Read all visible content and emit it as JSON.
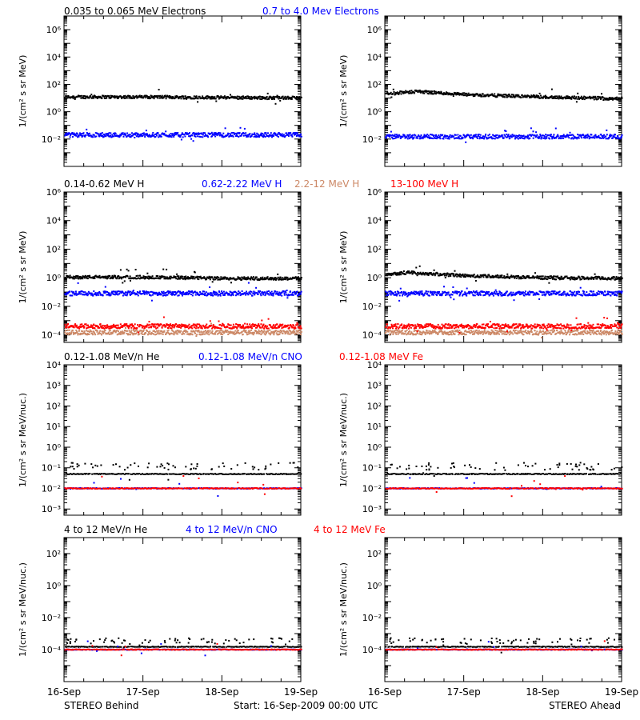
{
  "footer": {
    "left": "STEREO Behind",
    "center": "Start: 16-Sep-2009 00:00 UTC",
    "right": "STEREO Ahead"
  },
  "x_ticks": [
    "16-Sep",
    "17-Sep",
    "18-Sep",
    "19-Sep"
  ],
  "colors": {
    "black": "#000000",
    "blue": "#0000ff",
    "tan": "#cc8866",
    "red": "#ff0000"
  },
  "rows": [
    {
      "labels": [
        {
          "text": "0.035 to 0.065 MeV Electrons",
          "color": "#000000"
        },
        {
          "text": "0.7 to 4.0 Mev Electrons",
          "color": "#0000ff"
        }
      ],
      "ylabel": "1/(cm² s sr MeV)",
      "yticks": [
        {
          "exp": -2,
          "text": "10⁻²"
        },
        {
          "exp": 0,
          "text": "10⁰"
        },
        {
          "exp": 2,
          "text": "10²"
        },
        {
          "exp": 4,
          "text": "10⁴"
        },
        {
          "exp": 6,
          "text": "10⁶"
        }
      ]
    },
    {
      "labels": [
        {
          "text": "0.14-0.62 MeV H",
          "color": "#000000"
        },
        {
          "text": "0.62-2.22 MeV H",
          "color": "#0000ff"
        },
        {
          "text": "2.2-12 MeV H",
          "color": "#cc8866"
        },
        {
          "text": "13-100 MeV H",
          "color": "#ff0000"
        }
      ],
      "ylabel": "1/(cm² s sr MeV)",
      "yticks": [
        {
          "exp": -4,
          "text": "10⁻⁴"
        },
        {
          "exp": -2,
          "text": "10⁻²"
        },
        {
          "exp": 0,
          "text": "10⁰"
        },
        {
          "exp": 2,
          "text": "10²"
        },
        {
          "exp": 4,
          "text": "10⁴"
        },
        {
          "exp": 6,
          "text": "10⁶"
        }
      ]
    },
    {
      "labels": [
        {
          "text": "0.12-1.08 MeV/n He",
          "color": "#000000"
        },
        {
          "text": "0.12-1.08 MeV/n CNO",
          "color": "#0000ff"
        },
        {
          "text": "0.12-1.08 MeV Fe",
          "color": "#ff0000"
        }
      ],
      "ylabel": "1/(cm² s sr MeV/nuc.)",
      "yticks": [
        {
          "exp": -3,
          "text": "10⁻³"
        },
        {
          "exp": -2,
          "text": "10⁻²"
        },
        {
          "exp": -1,
          "text": "10⁻¹"
        },
        {
          "exp": 0,
          "text": "10⁰"
        },
        {
          "exp": 1,
          "text": "10¹"
        },
        {
          "exp": 2,
          "text": "10²"
        },
        {
          "exp": 3,
          "text": "10³"
        },
        {
          "exp": 4,
          "text": "10⁴"
        }
      ]
    },
    {
      "labels": [
        {
          "text": "4 to 12 MeV/n He",
          "color": "#000000"
        },
        {
          "text": "4 to 12 MeV/n CNO",
          "color": "#0000ff"
        },
        {
          "text": "4 to 12 MeV Fe",
          "color": "#ff0000"
        }
      ],
      "ylabel": "1/(cm² s sr MeV/nuc.)",
      "yticks": [
        {
          "exp": -4,
          "text": "10⁻⁴"
        },
        {
          "exp": -2,
          "text": "10⁻²"
        },
        {
          "exp": 0,
          "text": "10⁰"
        },
        {
          "exp": 2,
          "text": "10²"
        }
      ]
    }
  ],
  "chart_data": [
    {
      "type": "scatter",
      "spacecraft": "STEREO Behind",
      "row": 0,
      "xlim": [
        "2009-09-16",
        "2009-09-19"
      ],
      "ylim": [
        0.0001,
        10000000
      ],
      "yscale": "log",
      "ylabel": "1/(cm² s sr MeV)",
      "series": [
        {
          "name": "0.035 to 0.065 MeV Electrons",
          "color": "#000000",
          "level": [
            [
              0,
              12
            ],
            [
              1,
              12
            ],
            [
              2,
              11
            ],
            [
              3,
              10
            ]
          ]
        },
        {
          "name": "0.7 to 4.0 Mev Electrons",
          "color": "#0000ff",
          "level": [
            [
              0,
              0.02
            ],
            [
              3,
              0.02
            ]
          ]
        }
      ]
    },
    {
      "type": "scatter",
      "spacecraft": "STEREO Ahead",
      "row": 0,
      "xlim": [
        "2009-09-16",
        "2009-09-19"
      ],
      "ylim": [
        0.0001,
        10000000
      ],
      "yscale": "log",
      "ylabel": "1/(cm² s sr MeV)",
      "series": [
        {
          "name": "0.035 to 0.065 MeV Electrons",
          "color": "#000000",
          "level": [
            [
              0,
              20
            ],
            [
              0.4,
              30
            ],
            [
              1,
              18
            ],
            [
              2,
              12
            ],
            [
              3,
              9
            ]
          ]
        },
        {
          "name": "0.7 to 4.0 Mev Electrons",
          "color": "#0000ff",
          "level": [
            [
              0,
              0.015
            ],
            [
              3,
              0.015
            ]
          ]
        }
      ]
    },
    {
      "type": "scatter",
      "spacecraft": "STEREO Behind",
      "row": 1,
      "xlim": [
        "2009-09-16",
        "2009-09-19"
      ],
      "ylim": [
        3e-05,
        1000000
      ],
      "yscale": "log",
      "ylabel": "1/(cm² s sr MeV)",
      "series": [
        {
          "name": "0.14-0.62 MeV H",
          "color": "#000000",
          "level": [
            [
              0,
              1.1
            ],
            [
              1,
              1.1
            ],
            [
              2,
              0.9
            ],
            [
              3,
              0.9
            ]
          ]
        },
        {
          "name": "0.62-2.22 MeV H",
          "color": "#0000ff",
          "level": [
            [
              0,
              0.08
            ],
            [
              3,
              0.08
            ]
          ]
        },
        {
          "name": "2.2-12 MeV H",
          "color": "#cc8866",
          "level": [
            [
              0,
              0.00015
            ],
            [
              3,
              0.00015
            ]
          ]
        },
        {
          "name": "13-100 MeV H",
          "color": "#ff0000",
          "level": [
            [
              0,
              0.0004
            ],
            [
              3,
              0.0004
            ]
          ]
        }
      ]
    },
    {
      "type": "scatter",
      "spacecraft": "STEREO Ahead",
      "row": 1,
      "xlim": [
        "2009-09-16",
        "2009-09-19"
      ],
      "ylim": [
        3e-05,
        1000000
      ],
      "yscale": "log",
      "ylabel": "1/(cm² s sr MeV)",
      "series": [
        {
          "name": "0.14-0.62 MeV H",
          "color": "#000000",
          "level": [
            [
              0,
              1.8
            ],
            [
              0.3,
              2.3
            ],
            [
              1,
              1.4
            ],
            [
              2,
              1.0
            ],
            [
              3,
              0.9
            ]
          ]
        },
        {
          "name": "0.62-2.22 MeV H",
          "color": "#0000ff",
          "level": [
            [
              0,
              0.08
            ],
            [
              3,
              0.08
            ]
          ]
        },
        {
          "name": "2.2-12 MeV H",
          "color": "#cc8866",
          "level": [
            [
              0,
              0.00015
            ],
            [
              3,
              0.00015
            ]
          ]
        },
        {
          "name": "13-100 MeV H",
          "color": "#ff0000",
          "level": [
            [
              0,
              0.0004
            ],
            [
              3,
              0.0004
            ]
          ]
        }
      ]
    },
    {
      "type": "scatter",
      "spacecraft": "STEREO Behind",
      "row": 2,
      "xlim": [
        "2009-09-16",
        "2009-09-19"
      ],
      "ylim": [
        0.0005,
        10000
      ],
      "yscale": "log",
      "ylabel": "1/(cm² s sr MeV/nuc.)",
      "series": [
        {
          "name": "0.12-1.08 MeV/n He",
          "color": "#000000",
          "level": [
            [
              0,
              0.05
            ],
            [
              3,
              0.05
            ]
          ]
        },
        {
          "name": "0.12-1.08 MeV/n CNO",
          "color": "#0000ff",
          "level": [
            [
              0,
              0.01
            ],
            [
              3,
              0.01
            ]
          ]
        },
        {
          "name": "0.12-1.08 MeV Fe",
          "color": "#ff0000",
          "level": [
            [
              0,
              0.01
            ],
            [
              3,
              0.01
            ]
          ]
        }
      ]
    },
    {
      "type": "scatter",
      "spacecraft": "STEREO Ahead",
      "row": 2,
      "xlim": [
        "2009-09-16",
        "2009-09-19"
      ],
      "ylim": [
        0.0005,
        10000
      ],
      "yscale": "log",
      "ylabel": "1/(cm² s sr MeV/nuc.)",
      "series": [
        {
          "name": "0.12-1.08 MeV/n He",
          "color": "#000000",
          "level": [
            [
              0,
              0.05
            ],
            [
              3,
              0.05
            ]
          ]
        },
        {
          "name": "0.12-1.08 MeV/n CNO",
          "color": "#0000ff",
          "level": [
            [
              0,
              0.01
            ],
            [
              3,
              0.01
            ]
          ]
        },
        {
          "name": "0.12-1.08 MeV Fe",
          "color": "#ff0000",
          "level": [
            [
              0,
              0.01
            ],
            [
              3,
              0.01
            ]
          ]
        }
      ]
    },
    {
      "type": "scatter",
      "spacecraft": "STEREO Behind",
      "row": 3,
      "xlim": [
        "2009-09-16",
        "2009-09-19"
      ],
      "ylim": [
        1e-06,
        1000
      ],
      "yscale": "log",
      "ylabel": "1/(cm² s sr MeV/nuc.)",
      "series": [
        {
          "name": "4 to 12 MeV/n He",
          "color": "#000000",
          "level": [
            [
              0,
              0.00015
            ],
            [
              3,
              0.00015
            ]
          ]
        },
        {
          "name": "4 to 12 MeV/n CNO",
          "color": "#0000ff",
          "level": [
            [
              0,
              0.0001
            ],
            [
              3,
              0.0001
            ]
          ]
        },
        {
          "name": "4 to 12 MeV Fe",
          "color": "#ff0000",
          "level": [
            [
              0,
              0.0001
            ],
            [
              3,
              0.0001
            ]
          ]
        }
      ]
    },
    {
      "type": "scatter",
      "spacecraft": "STEREO Ahead",
      "row": 3,
      "xlim": [
        "2009-09-16",
        "2009-09-19"
      ],
      "ylim": [
        1e-06,
        1000
      ],
      "yscale": "log",
      "ylabel": "1/(cm² s sr MeV/nuc.)",
      "series": [
        {
          "name": "4 to 12 MeV/n He",
          "color": "#000000",
          "level": [
            [
              0,
              0.00015
            ],
            [
              3,
              0.00015
            ]
          ]
        },
        {
          "name": "4 to 12 MeV/n CNO",
          "color": "#0000ff",
          "level": [
            [
              0,
              0.0001
            ],
            [
              3,
              0.0001
            ]
          ]
        },
        {
          "name": "4 to 12 MeV Fe",
          "color": "#ff0000",
          "level": [
            [
              0,
              0.0001
            ],
            [
              3,
              0.0001
            ]
          ]
        }
      ]
    }
  ]
}
